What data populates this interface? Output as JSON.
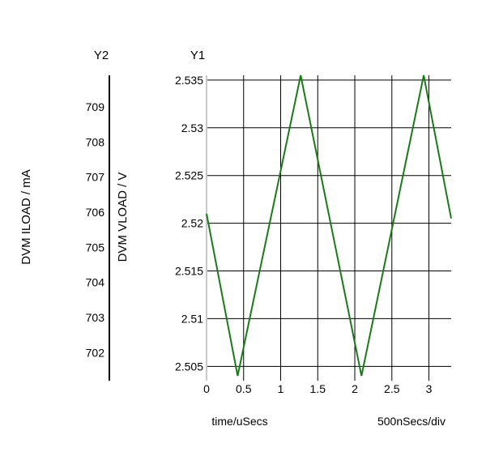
{
  "chart_data": {
    "type": "line",
    "y1_header": "Y1",
    "y2_header": "Y2",
    "y1_label": "DVM VLOAD / V",
    "y2_label": "DVM ILOAD / mA",
    "xlabel": "time/uSecs",
    "x_scale_note": "500nSecs/div",
    "xlim": [
      0,
      3.3
    ],
    "y1lim": [
      2.5035,
      2.5355
    ],
    "y2lim": [
      701.2,
      709.9
    ],
    "x_ticks": [
      "0",
      "0.5",
      "1",
      "1.5",
      "2",
      "2.5",
      "3"
    ],
    "y1_ticks": [
      "2.535",
      "2.53",
      "2.525",
      "2.52",
      "2.515",
      "2.51",
      "2.505"
    ],
    "y2_ticks": [
      "709",
      "708",
      "707",
      "706",
      "705",
      "704",
      "703",
      "702"
    ],
    "grid": true,
    "series": [
      {
        "color": "#1a7a1a",
        "x": [
          0,
          0.42,
          1.27,
          2.09,
          2.93,
          3.3
        ],
        "y": [
          2.521,
          2.504,
          2.5355,
          2.504,
          2.5355,
          2.5205
        ]
      }
    ]
  }
}
